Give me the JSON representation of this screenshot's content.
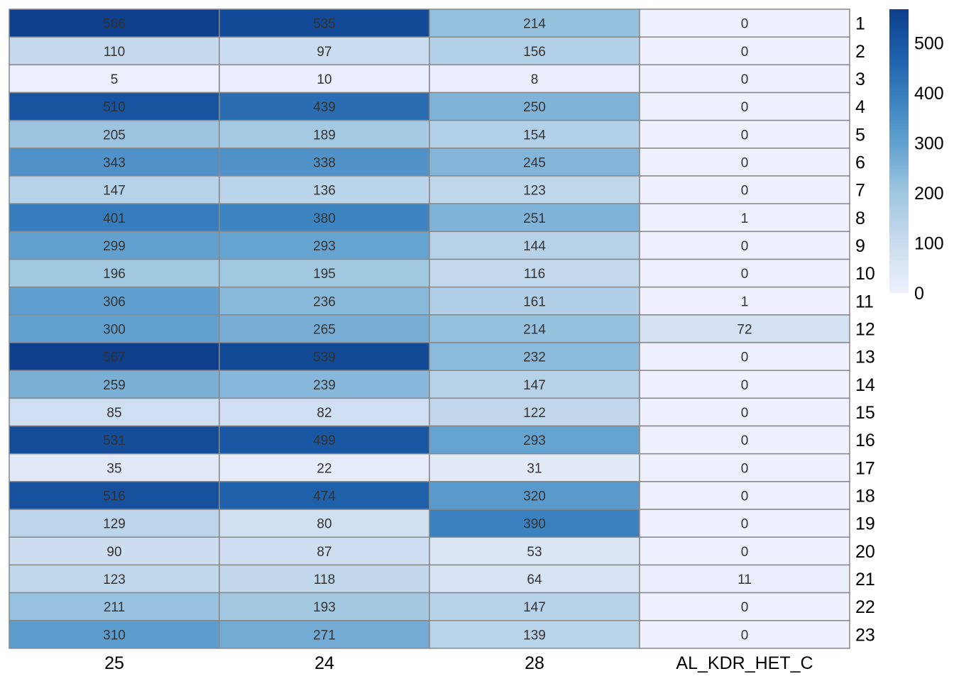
{
  "chart_data": {
    "type": "heatmap",
    "title": "",
    "xlabel": "",
    "ylabel": "",
    "columns": [
      "25",
      "24",
      "28",
      "AL_KDR_HET_C"
    ],
    "rows": [
      "1",
      "2",
      "3",
      "4",
      "5",
      "6",
      "7",
      "8",
      "9",
      "10",
      "11",
      "12",
      "13",
      "14",
      "15",
      "16",
      "17",
      "18",
      "19",
      "20",
      "21",
      "22",
      "23"
    ],
    "values": [
      [
        566,
        535,
        214,
        0
      ],
      [
        110,
        97,
        156,
        0
      ],
      [
        5,
        10,
        8,
        0
      ],
      [
        510,
        439,
        250,
        0
      ],
      [
        205,
        189,
        154,
        0
      ],
      [
        343,
        338,
        245,
        0
      ],
      [
        147,
        136,
        123,
        0
      ],
      [
        401,
        380,
        251,
        1
      ],
      [
        299,
        293,
        144,
        0
      ],
      [
        196,
        195,
        116,
        0
      ],
      [
        306,
        236,
        161,
        1
      ],
      [
        300,
        265,
        214,
        72
      ],
      [
        567,
        539,
        232,
        0
      ],
      [
        259,
        239,
        147,
        0
      ],
      [
        85,
        82,
        122,
        0
      ],
      [
        531,
        499,
        293,
        0
      ],
      [
        35,
        22,
        31,
        0
      ],
      [
        516,
        474,
        320,
        0
      ],
      [
        129,
        80,
        390,
        0
      ],
      [
        90,
        87,
        53,
        0
      ],
      [
        123,
        118,
        64,
        11
      ],
      [
        211,
        193,
        147,
        0
      ],
      [
        310,
        271,
        139,
        0
      ]
    ],
    "value_range": [
      0,
      567
    ],
    "colorbar": {
      "ticks": [
        0,
        100,
        200,
        300,
        400,
        500
      ],
      "tick_labels": [
        "0",
        "100",
        "200",
        "300",
        "400",
        "500"
      ]
    },
    "colors": {
      "low": "#eef0fd",
      "mid": "#a9cbe3",
      "high": "#0d3f8c",
      "cell_border": "#888888",
      "cell_text": "#333333"
    },
    "legend_position": "right"
  }
}
